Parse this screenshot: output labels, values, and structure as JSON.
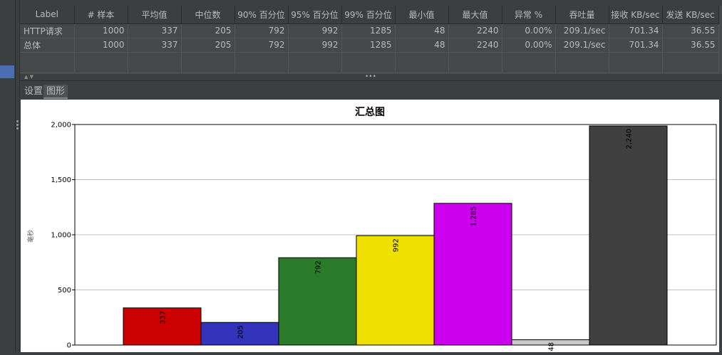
{
  "table": {
    "headers": [
      "Label",
      "# 样本",
      "平均值",
      "中位数",
      "90% 百分位",
      "95% 百分位",
      "99% 百分位",
      "最小值",
      "最大值",
      "异常 %",
      "吞吐量",
      "接收 KB/sec",
      "发送 KB/sec"
    ],
    "rows": [
      [
        "HTTP请求",
        "1000",
        "337",
        "205",
        "792",
        "992",
        "1285",
        "48",
        "2240",
        "0.00%",
        "209.1/sec",
        "701.34",
        "36.55"
      ],
      [
        "总体",
        "1000",
        "337",
        "205",
        "792",
        "992",
        "1285",
        "48",
        "2240",
        "0.00%",
        "209.1/sec",
        "701.34",
        "36.55"
      ]
    ]
  },
  "tabs": [
    {
      "label": "设置",
      "selected": false
    },
    {
      "label": "图形",
      "selected": true
    }
  ],
  "chart_data": {
    "type": "bar",
    "title": "汇总图",
    "ylabel": "毫秒",
    "xlabel": "",
    "ylim": [
      0,
      2000
    ],
    "yticks": [
      "0",
      "500",
      "1,000",
      "1,500",
      "2,000"
    ],
    "grid": true,
    "series": [
      {
        "label": "337",
        "value": 337,
        "color": "#cc0000"
      },
      {
        "label": "205",
        "value": 205,
        "color": "#3333bb"
      },
      {
        "label": "792",
        "value": 792,
        "color": "#2a7a2a"
      },
      {
        "label": "992",
        "value": 992,
        "color": "#f0e000"
      },
      {
        "label": "1,285",
        "value": 1285,
        "color": "#cc00ee"
      },
      {
        "label": "48",
        "value": 48,
        "color": "#c8c8c8"
      },
      {
        "label": "2,240",
        "value": 2240,
        "color": "#404040"
      }
    ]
  }
}
